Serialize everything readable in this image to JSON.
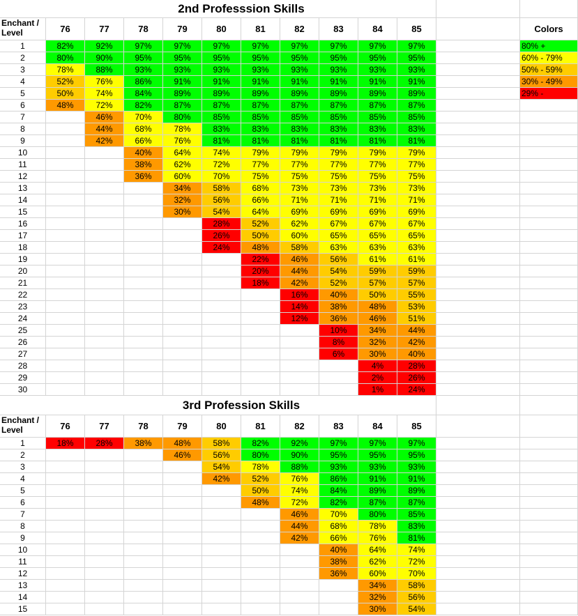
{
  "colors": {
    "p80": "#00ff00",
    "p60": "#ffff00",
    "p50": "#ffcc00",
    "p30": "#ff9900",
    "p0": "#ff0000"
  },
  "header_label": "Enchant / Level",
  "columns": [
    "76",
    "77",
    "78",
    "79",
    "80",
    "81",
    "82",
    "83",
    "84",
    "85"
  ],
  "legend": {
    "title": "Colors",
    "items": [
      {
        "label": "80% +",
        "color": "#00ff00"
      },
      {
        "label": "60% - 79%",
        "color": "#ffff00"
      },
      {
        "label": "50% - 59%",
        "color": "#ffcc00"
      },
      {
        "label": "30% - 49%",
        "color": "#ff9900"
      },
      {
        "label": "29% -",
        "color": "#ff0000"
      }
    ]
  },
  "chart_data": [
    {
      "type": "table",
      "title": "2nd Professsion Skills",
      "row_header": "Enchant / Level",
      "columns": [
        "76",
        "77",
        "78",
        "79",
        "80",
        "81",
        "82",
        "83",
        "84",
        "85"
      ],
      "rows": [
        {
          "level": "1",
          "start": 0,
          "values": [
            82,
            92,
            97,
            97,
            97,
            97,
            97,
            97,
            97,
            97
          ]
        },
        {
          "level": "2",
          "start": 0,
          "values": [
            80,
            90,
            95,
            95,
            95,
            95,
            95,
            95,
            95,
            95
          ]
        },
        {
          "level": "3",
          "start": 0,
          "values": [
            78,
            88,
            93,
            93,
            93,
            93,
            93,
            93,
            93,
            93
          ]
        },
        {
          "level": "4",
          "start": 0,
          "values": [
            52,
            76,
            86,
            91,
            91,
            91,
            91,
            91,
            91,
            91
          ]
        },
        {
          "level": "5",
          "start": 0,
          "values": [
            50,
            74,
            84,
            89,
            89,
            89,
            89,
            89,
            89,
            89
          ]
        },
        {
          "level": "6",
          "start": 0,
          "values": [
            48,
            72,
            82,
            87,
            87,
            87,
            87,
            87,
            87,
            87
          ]
        },
        {
          "level": "7",
          "start": 1,
          "values": [
            46,
            70,
            80,
            85,
            85,
            85,
            85,
            85,
            85
          ]
        },
        {
          "level": "8",
          "start": 1,
          "values": [
            44,
            68,
            78,
            83,
            83,
            83,
            83,
            83,
            83
          ]
        },
        {
          "level": "9",
          "start": 1,
          "values": [
            42,
            66,
            76,
            81,
            81,
            81,
            81,
            81,
            81
          ]
        },
        {
          "level": "10",
          "start": 2,
          "values": [
            40,
            64,
            74,
            79,
            79,
            79,
            79,
            79
          ]
        },
        {
          "level": "11",
          "start": 2,
          "values": [
            38,
            62,
            72,
            77,
            77,
            77,
            77,
            77
          ]
        },
        {
          "level": "12",
          "start": 2,
          "values": [
            36,
            60,
            70,
            75,
            75,
            75,
            75,
            75
          ]
        },
        {
          "level": "13",
          "start": 3,
          "values": [
            34,
            58,
            68,
            73,
            73,
            73,
            73
          ]
        },
        {
          "level": "14",
          "start": 3,
          "values": [
            32,
            56,
            66,
            71,
            71,
            71,
            71
          ]
        },
        {
          "level": "15",
          "start": 3,
          "values": [
            30,
            54,
            64,
            69,
            69,
            69,
            69
          ]
        },
        {
          "level": "16",
          "start": 4,
          "values": [
            28,
            52,
            62,
            67,
            67,
            67
          ]
        },
        {
          "level": "17",
          "start": 4,
          "values": [
            26,
            50,
            60,
            65,
            65,
            65
          ]
        },
        {
          "level": "18",
          "start": 4,
          "values": [
            24,
            48,
            58,
            63,
            63,
            63
          ]
        },
        {
          "level": "19",
          "start": 5,
          "values": [
            22,
            46,
            56,
            61,
            61
          ]
        },
        {
          "level": "20",
          "start": 5,
          "values": [
            20,
            44,
            54,
            59,
            59
          ]
        },
        {
          "level": "21",
          "start": 5,
          "values": [
            18,
            42,
            52,
            57,
            57
          ]
        },
        {
          "level": "22",
          "start": 6,
          "values": [
            16,
            40,
            50,
            55
          ]
        },
        {
          "level": "23",
          "start": 6,
          "values": [
            14,
            38,
            48,
            53
          ]
        },
        {
          "level": "24",
          "start": 6,
          "values": [
            12,
            36,
            46,
            51
          ]
        },
        {
          "level": "25",
          "start": 7,
          "values": [
            10,
            34,
            44
          ]
        },
        {
          "level": "26",
          "start": 7,
          "values": [
            8,
            32,
            42
          ]
        },
        {
          "level": "27",
          "start": 7,
          "values": [
            6,
            30,
            40
          ]
        },
        {
          "level": "28",
          "start": 8,
          "values": [
            4,
            28
          ]
        },
        {
          "level": "29",
          "start": 8,
          "values": [
            2,
            26
          ]
        },
        {
          "level": "30",
          "start": 8,
          "values": [
            1,
            24
          ]
        }
      ]
    },
    {
      "type": "table",
      "title": "3rd Profession Skills",
      "row_header": "Enchant / Level",
      "columns": [
        "76",
        "77",
        "78",
        "79",
        "80",
        "81",
        "82",
        "83",
        "84",
        "85"
      ],
      "rows": [
        {
          "level": "1",
          "start": 0,
          "values": [
            18,
            28,
            38,
            48,
            58,
            82,
            92,
            97,
            97,
            97
          ]
        },
        {
          "level": "2",
          "start": 3,
          "values": [
            46,
            56,
            80,
            90,
            95,
            95,
            95
          ]
        },
        {
          "level": "3",
          "start": 4,
          "values": [
            54,
            78,
            88,
            93,
            93,
            93
          ]
        },
        {
          "level": "4",
          "start": 4,
          "values": [
            42,
            52,
            76,
            86,
            91,
            91
          ]
        },
        {
          "level": "5",
          "start": 5,
          "values": [
            50,
            74,
            84,
            89,
            89
          ]
        },
        {
          "level": "6",
          "start": 5,
          "values": [
            48,
            72,
            82,
            87,
            87
          ]
        },
        {
          "level": "7",
          "start": 6,
          "values": [
            46,
            70,
            80,
            85
          ]
        },
        {
          "level": "8",
          "start": 6,
          "values": [
            44,
            68,
            78,
            83
          ]
        },
        {
          "level": "9",
          "start": 6,
          "values": [
            42,
            66,
            76,
            81
          ]
        },
        {
          "level": "10",
          "start": 7,
          "values": [
            40,
            64,
            74
          ]
        },
        {
          "level": "11",
          "start": 7,
          "values": [
            38,
            62,
            72
          ]
        },
        {
          "level": "12",
          "start": 7,
          "values": [
            36,
            60,
            70
          ]
        },
        {
          "level": "13",
          "start": 8,
          "values": [
            34,
            58
          ]
        },
        {
          "level": "14",
          "start": 8,
          "values": [
            32,
            56
          ]
        },
        {
          "level": "15",
          "start": 8,
          "values": [
            30,
            54
          ]
        }
      ]
    }
  ]
}
